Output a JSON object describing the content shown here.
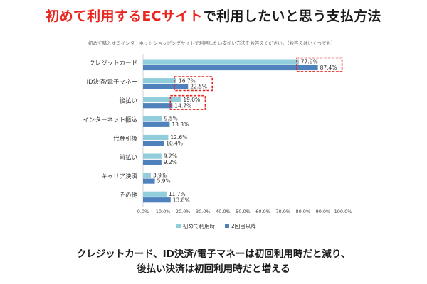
{
  "headline": {
    "accent": "初めて利用するECサイト",
    "rest": "で利用したいと思う支払方法"
  },
  "question": "初めて購入するインターネットショッピングサイトで利用したい支払い方法をお答えください。（お答えはいくつでも）",
  "takeaway": {
    "line1": "クレジットカード、ID決済/電子マネーは初回利用時だと減り、",
    "line2": "後払い決済は初回利用時だと増える"
  },
  "colors": {
    "series1": "#92cddc",
    "series2": "#4f81bd",
    "highlight": "#e8261f",
    "accent": "#e8261f"
  },
  "chart_data": {
    "type": "bar",
    "orientation": "horizontal",
    "categories": [
      "クレジットカード",
      "ID決済/電子マネー",
      "後払い",
      "インターネット振込",
      "代金引換",
      "前払い",
      "キャリア決済",
      "その他"
    ],
    "series": [
      {
        "name": "初めて利用時",
        "values": [
          77.9,
          16.7,
          19.0,
          9.5,
          12.6,
          9.2,
          3.9,
          11.7
        ],
        "labels": [
          "77.9%",
          "16.7%",
          "19.0%",
          "9.5%",
          "12.6%",
          "9.2%",
          "3.9%",
          "11.7%"
        ]
      },
      {
        "name": "2回目以降",
        "values": [
          87.4,
          22.5,
          14.7,
          13.3,
          10.4,
          9.2,
          5.9,
          13.8
        ],
        "labels": [
          "87.4%",
          "22.5%",
          "14.7%",
          "13.3%",
          "10.4%",
          "9.2%",
          "5.9%",
          "13.8%"
        ]
      }
    ],
    "xlim": [
      0,
      100
    ],
    "xticks": [
      0,
      10,
      20,
      30,
      40,
      50,
      60,
      70,
      80,
      90,
      100
    ],
    "xtick_labels": [
      "0.0%",
      "10.0%",
      "20.0%",
      "30.0%",
      "40.0%",
      "50.0%",
      "60.0%",
      "70.0%",
      "80.0%",
      "90.0%",
      "100.0%"
    ],
    "grid": false,
    "legend": "bottom",
    "highlighted_categories": [
      "クレジットカード",
      "ID決済/電子マネー",
      "後払い"
    ]
  }
}
